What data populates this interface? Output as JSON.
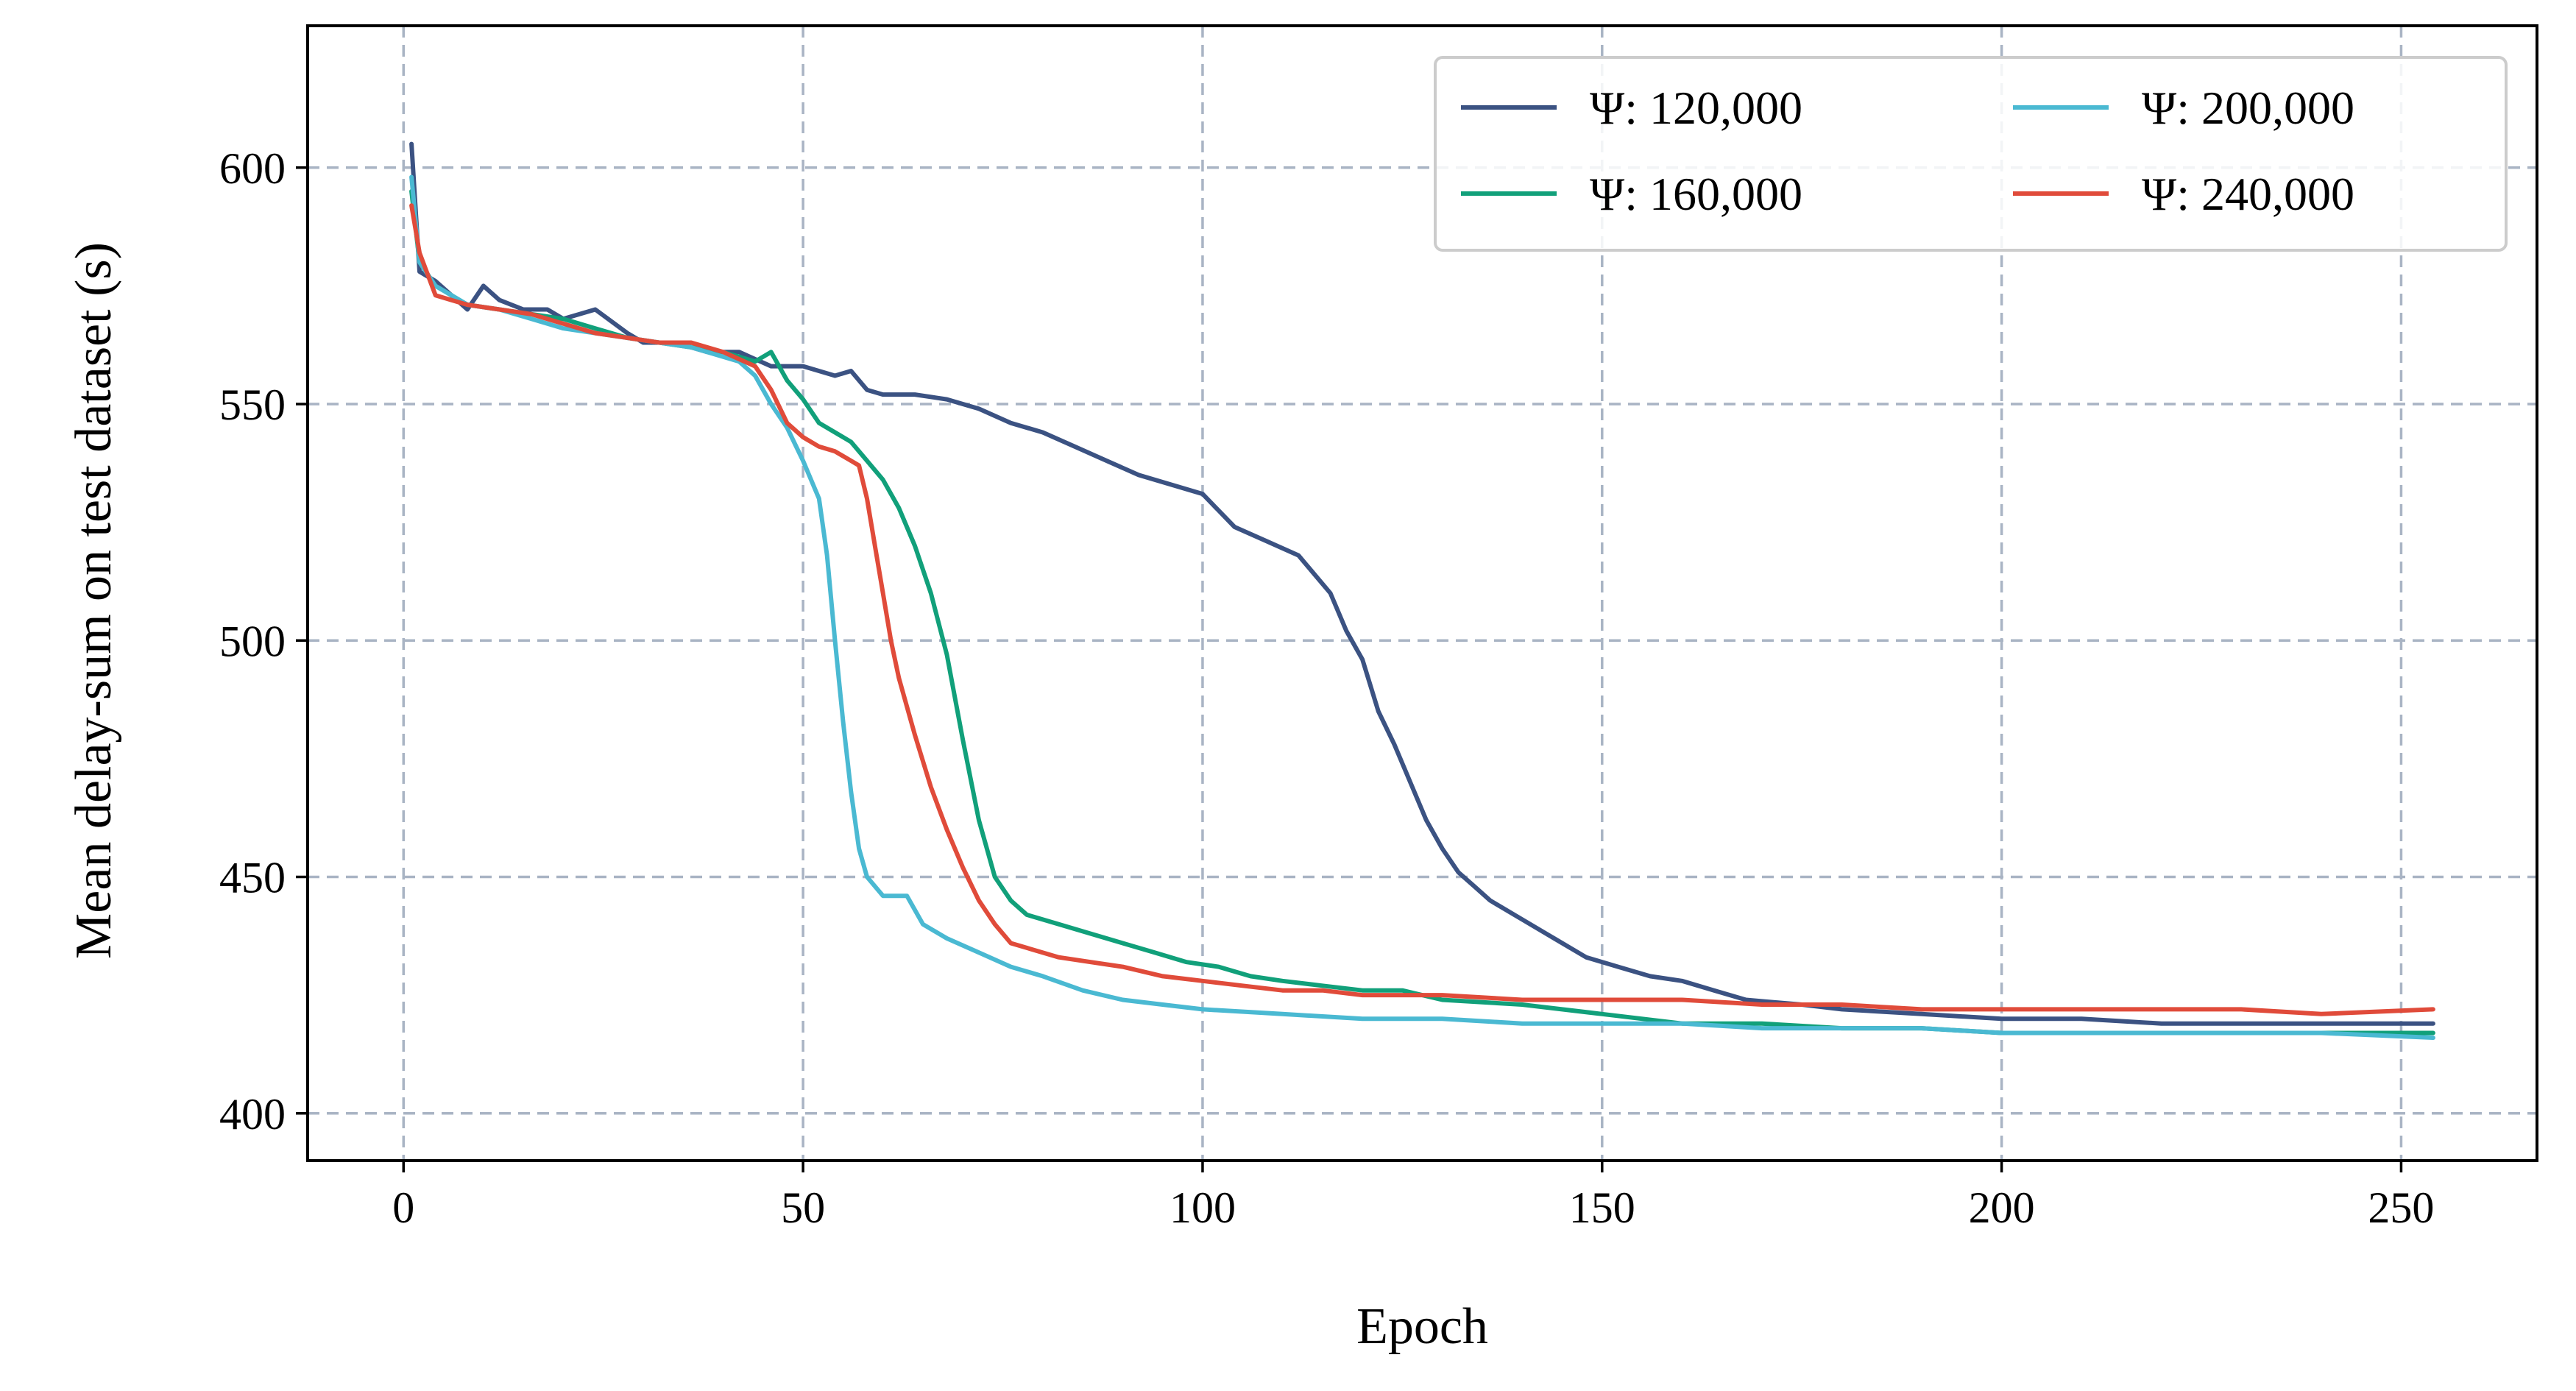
{
  "chart_data": {
    "type": "line",
    "title": "",
    "xlabel": "Epoch",
    "ylabel": "Mean delay-sum on test dataset (s)",
    "xlim": [
      -12,
      267
    ],
    "ylim": [
      390,
      630
    ],
    "xticks": [
      0,
      50,
      100,
      150,
      200,
      250
    ],
    "yticks": [
      400,
      450,
      500,
      550,
      600
    ],
    "grid": true,
    "legend_position": "top-right",
    "legend_columns": 2,
    "series": [
      {
        "name": "Ψ: 120,000",
        "color": "#3b5282",
        "points": [
          [
            1,
            605
          ],
          [
            2,
            578
          ],
          [
            4,
            576
          ],
          [
            6,
            573
          ],
          [
            8,
            570
          ],
          [
            10,
            575
          ],
          [
            12,
            572
          ],
          [
            15,
            570
          ],
          [
            18,
            570
          ],
          [
            20,
            568
          ],
          [
            24,
            570
          ],
          [
            28,
            565
          ],
          [
            30,
            563
          ],
          [
            34,
            563
          ],
          [
            38,
            561
          ],
          [
            42,
            561
          ],
          [
            46,
            558
          ],
          [
            50,
            558
          ],
          [
            54,
            556
          ],
          [
            56,
            557
          ],
          [
            58,
            553
          ],
          [
            60,
            552
          ],
          [
            64,
            552
          ],
          [
            68,
            551
          ],
          [
            72,
            549
          ],
          [
            76,
            546
          ],
          [
            80,
            544
          ],
          [
            84,
            541
          ],
          [
            88,
            538
          ],
          [
            92,
            535
          ],
          [
            96,
            533
          ],
          [
            100,
            531
          ],
          [
            104,
            524
          ],
          [
            108,
            521
          ],
          [
            112,
            518
          ],
          [
            116,
            510
          ],
          [
            118,
            502
          ],
          [
            120,
            496
          ],
          [
            122,
            485
          ],
          [
            124,
            478
          ],
          [
            126,
            470
          ],
          [
            128,
            462
          ],
          [
            130,
            456
          ],
          [
            132,
            451
          ],
          [
            134,
            448
          ],
          [
            136,
            445
          ],
          [
            140,
            441
          ],
          [
            144,
            437
          ],
          [
            148,
            433
          ],
          [
            152,
            431
          ],
          [
            156,
            429
          ],
          [
            160,
            428
          ],
          [
            164,
            426
          ],
          [
            168,
            424
          ],
          [
            175,
            423
          ],
          [
            180,
            422
          ],
          [
            190,
            421
          ],
          [
            200,
            420
          ],
          [
            210,
            420
          ],
          [
            220,
            419
          ],
          [
            230,
            419
          ],
          [
            240,
            419
          ],
          [
            254,
            419
          ]
        ]
      },
      {
        "name": "Ψ: 160,000",
        "color": "#11a07a",
        "points": [
          [
            1,
            595
          ],
          [
            2,
            580
          ],
          [
            4,
            575
          ],
          [
            6,
            573
          ],
          [
            8,
            571
          ],
          [
            12,
            570
          ],
          [
            16,
            569
          ],
          [
            20,
            568
          ],
          [
            24,
            566
          ],
          [
            28,
            564
          ],
          [
            32,
            563
          ],
          [
            36,
            562
          ],
          [
            40,
            561
          ],
          [
            44,
            559
          ],
          [
            46,
            561
          ],
          [
            48,
            555
          ],
          [
            50,
            551
          ],
          [
            52,
            546
          ],
          [
            54,
            544
          ],
          [
            56,
            542
          ],
          [
            58,
            538
          ],
          [
            60,
            534
          ],
          [
            62,
            528
          ],
          [
            64,
            520
          ],
          [
            66,
            510
          ],
          [
            68,
            497
          ],
          [
            70,
            479
          ],
          [
            72,
            462
          ],
          [
            74,
            450
          ],
          [
            76,
            445
          ],
          [
            78,
            442
          ],
          [
            82,
            440
          ],
          [
            86,
            438
          ],
          [
            90,
            436
          ],
          [
            94,
            434
          ],
          [
            98,
            432
          ],
          [
            102,
            431
          ],
          [
            106,
            429
          ],
          [
            110,
            428
          ],
          [
            115,
            427
          ],
          [
            120,
            426
          ],
          [
            125,
            426
          ],
          [
            130,
            424
          ],
          [
            140,
            423
          ],
          [
            150,
            421
          ],
          [
            160,
            419
          ],
          [
            170,
            419
          ],
          [
            180,
            418
          ],
          [
            190,
            418
          ],
          [
            200,
            417
          ],
          [
            210,
            417
          ],
          [
            220,
            417
          ],
          [
            230,
            417
          ],
          [
            240,
            417
          ],
          [
            254,
            417
          ]
        ]
      },
      {
        "name": "Ψ: 200,000",
        "color": "#4ab9d2",
        "points": [
          [
            1,
            598
          ],
          [
            2,
            580
          ],
          [
            4,
            575
          ],
          [
            6,
            573
          ],
          [
            8,
            571
          ],
          [
            12,
            570
          ],
          [
            16,
            568
          ],
          [
            20,
            566
          ],
          [
            24,
            565
          ],
          [
            28,
            564
          ],
          [
            32,
            563
          ],
          [
            36,
            562
          ],
          [
            40,
            560
          ],
          [
            42,
            559
          ],
          [
            44,
            556
          ],
          [
            46,
            550
          ],
          [
            48,
            545
          ],
          [
            50,
            538
          ],
          [
            52,
            530
          ],
          [
            53,
            518
          ],
          [
            54,
            500
          ],
          [
            55,
            483
          ],
          [
            56,
            468
          ],
          [
            57,
            456
          ],
          [
            58,
            450
          ],
          [
            60,
            446
          ],
          [
            63,
            446
          ],
          [
            65,
            440
          ],
          [
            68,
            437
          ],
          [
            72,
            434
          ],
          [
            76,
            431
          ],
          [
            80,
            429
          ],
          [
            85,
            426
          ],
          [
            90,
            424
          ],
          [
            95,
            423
          ],
          [
            100,
            422
          ],
          [
            110,
            421
          ],
          [
            120,
            420
          ],
          [
            130,
            420
          ],
          [
            140,
            419
          ],
          [
            150,
            419
          ],
          [
            160,
            419
          ],
          [
            170,
            418
          ],
          [
            180,
            418
          ],
          [
            190,
            418
          ],
          [
            200,
            417
          ],
          [
            210,
            417
          ],
          [
            220,
            417
          ],
          [
            230,
            417
          ],
          [
            240,
            417
          ],
          [
            254,
            416
          ]
        ]
      },
      {
        "name": "Ψ: 240,000",
        "color": "#e04b3a",
        "points": [
          [
            1,
            592
          ],
          [
            2,
            582
          ],
          [
            4,
            573
          ],
          [
            6,
            572
          ],
          [
            8,
            571
          ],
          [
            12,
            570
          ],
          [
            16,
            569
          ],
          [
            20,
            567
          ],
          [
            24,
            565
          ],
          [
            28,
            564
          ],
          [
            32,
            563
          ],
          [
            36,
            563
          ],
          [
            40,
            561
          ],
          [
            44,
            558
          ],
          [
            46,
            553
          ],
          [
            48,
            546
          ],
          [
            50,
            543
          ],
          [
            52,
            541
          ],
          [
            54,
            540
          ],
          [
            56,
            538
          ],
          [
            57,
            537
          ],
          [
            58,
            530
          ],
          [
            59,
            520
          ],
          [
            60,
            510
          ],
          [
            61,
            500
          ],
          [
            62,
            492
          ],
          [
            64,
            480
          ],
          [
            66,
            469
          ],
          [
            68,
            460
          ],
          [
            70,
            452
          ],
          [
            72,
            445
          ],
          [
            74,
            440
          ],
          [
            76,
            436
          ],
          [
            78,
            435
          ],
          [
            82,
            433
          ],
          [
            86,
            432
          ],
          [
            90,
            431
          ],
          [
            95,
            429
          ],
          [
            100,
            428
          ],
          [
            105,
            427
          ],
          [
            110,
            426
          ],
          [
            115,
            426
          ],
          [
            120,
            425
          ],
          [
            130,
            425
          ],
          [
            140,
            424
          ],
          [
            150,
            424
          ],
          [
            160,
            424
          ],
          [
            170,
            423
          ],
          [
            180,
            423
          ],
          [
            190,
            422
          ],
          [
            200,
            422
          ],
          [
            210,
            422
          ],
          [
            220,
            422
          ],
          [
            230,
            422
          ],
          [
            240,
            421
          ],
          [
            254,
            422
          ]
        ]
      }
    ]
  }
}
